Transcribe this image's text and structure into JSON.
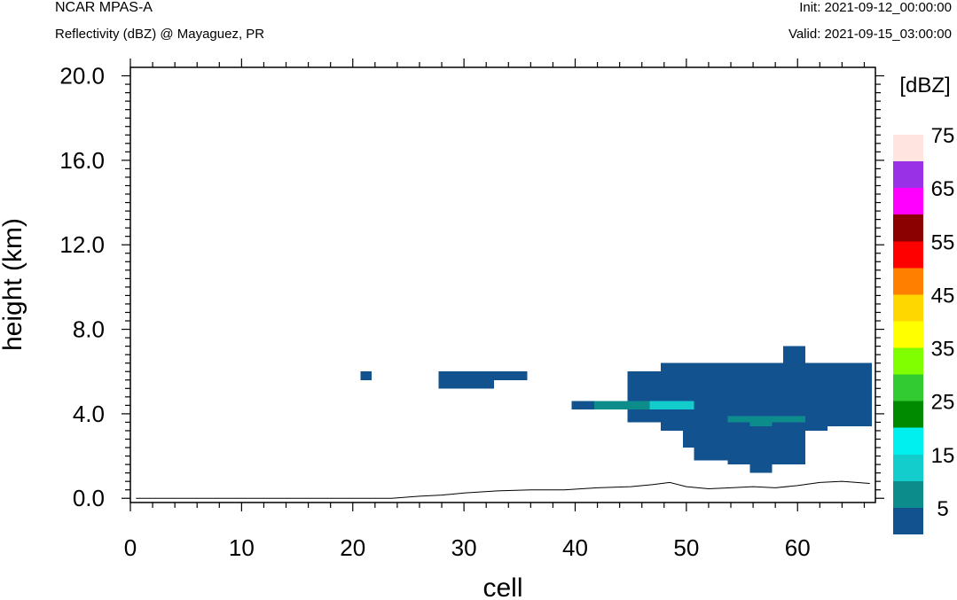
{
  "header": {
    "model": "NCAR MPAS-A",
    "field": "Reflectivity (dBZ) @ Mayaguez, PR",
    "init": "Init: 2021-09-12_00:00:00",
    "valid": "Valid: 2021-09-15_03:00:00"
  },
  "chart_data": {
    "type": "heatmap",
    "title": "Reflectivity (dBZ) @ Mayaguez, PR",
    "xlabel": "cell",
    "ylabel": "height (km)",
    "xlim": [
      0,
      67
    ],
    "ylim": [
      -0.2,
      20.4
    ],
    "xticks": [
      0,
      10,
      20,
      30,
      40,
      50,
      60
    ],
    "xtick_labels": [
      "0",
      "10",
      "20",
      "30",
      "40",
      "50",
      "60"
    ],
    "yticks": [
      0,
      4,
      8,
      12,
      16,
      20
    ],
    "ytick_labels": [
      "0.0",
      "4.0",
      "8.0",
      "12.0",
      "16.0",
      "20.0"
    ],
    "grid": false,
    "colorbar": {
      "units": "[dBZ]",
      "levels": [
        0,
        5,
        10,
        15,
        20,
        25,
        30,
        35,
        40,
        45,
        50,
        55,
        60,
        65,
        70,
        75
      ],
      "tick_labels": [
        "5",
        "15",
        "25",
        "35",
        "45",
        "55",
        "65",
        "75"
      ],
      "tick_values": [
        5,
        15,
        25,
        35,
        45,
        55,
        65,
        75
      ],
      "colors": [
        "#12528f",
        "#0d8c8c",
        "#13cccc",
        "#00f0f0",
        "#008a00",
        "#32cc32",
        "#7fff00",
        "#ffff00",
        "#ffd700",
        "#ff7f00",
        "#ff0000",
        "#8b0000",
        "#ff00ff",
        "#9932e6",
        "#ffe4e0"
      ]
    },
    "regions": [
      {
        "x0": 20.7,
        "x1": 21.7,
        "y0": 5.6,
        "y1": 6.0,
        "dbz_bin": 0
      },
      {
        "x0": 27.7,
        "x1": 32.7,
        "y0": 5.2,
        "y1": 6.0,
        "dbz_bin": 0
      },
      {
        "x0": 32.7,
        "x1": 35.7,
        "y0": 5.6,
        "y1": 6.0,
        "dbz_bin": 0
      },
      {
        "x0": 39.7,
        "x1": 41.7,
        "y0": 4.2,
        "y1": 4.6,
        "dbz_bin": 0
      },
      {
        "x0": 44.7,
        "x1": 47.7,
        "y0": 3.6,
        "y1": 6.0,
        "dbz_bin": 0
      },
      {
        "x0": 47.7,
        "x1": 49.7,
        "y0": 3.2,
        "y1": 6.4,
        "dbz_bin": 0
      },
      {
        "x0": 49.7,
        "x1": 50.7,
        "y0": 2.4,
        "y1": 6.4,
        "dbz_bin": 0
      },
      {
        "x0": 50.7,
        "x1": 53.7,
        "y0": 1.8,
        "y1": 6.4,
        "dbz_bin": 0
      },
      {
        "x0": 53.7,
        "x1": 55.7,
        "y0": 1.6,
        "y1": 6.4,
        "dbz_bin": 0
      },
      {
        "x0": 55.7,
        "x1": 57.7,
        "y0": 1.2,
        "y1": 6.4,
        "dbz_bin": 0
      },
      {
        "x0": 57.7,
        "x1": 58.7,
        "y0": 1.6,
        "y1": 6.4,
        "dbz_bin": 0
      },
      {
        "x0": 58.7,
        "x1": 60.7,
        "y0": 1.6,
        "y1": 7.2,
        "dbz_bin": 0
      },
      {
        "x0": 60.7,
        "x1": 62.7,
        "y0": 3.2,
        "y1": 6.4,
        "dbz_bin": 0
      },
      {
        "x0": 62.7,
        "x1": 66.7,
        "y0": 3.4,
        "y1": 6.4,
        "dbz_bin": 0
      },
      {
        "x0": 41.7,
        "x1": 46.7,
        "y0": 4.2,
        "y1": 4.6,
        "dbz_bin": 1
      },
      {
        "x0": 53.7,
        "x1": 60.7,
        "y0": 3.6,
        "y1": 3.9,
        "dbz_bin": 1
      },
      {
        "x0": 55.7,
        "x1": 57.7,
        "y0": 3.4,
        "y1": 3.7,
        "dbz_bin": 1
      },
      {
        "x0": 46.7,
        "x1": 50.7,
        "y0": 4.2,
        "y1": 4.6,
        "dbz_bin": 2
      }
    ],
    "terrain": {
      "x": [
        0.5,
        23.5,
        26,
        28,
        30,
        33,
        36,
        39,
        42,
        45,
        47,
        48.5,
        50,
        52,
        54,
        56,
        58,
        60,
        62,
        64,
        66.5
      ],
      "y": [
        0,
        0,
        0.1,
        0.15,
        0.25,
        0.35,
        0.4,
        0.4,
        0.5,
        0.55,
        0.65,
        0.75,
        0.55,
        0.45,
        0.5,
        0.55,
        0.5,
        0.6,
        0.75,
        0.8,
        0.7
      ]
    }
  }
}
